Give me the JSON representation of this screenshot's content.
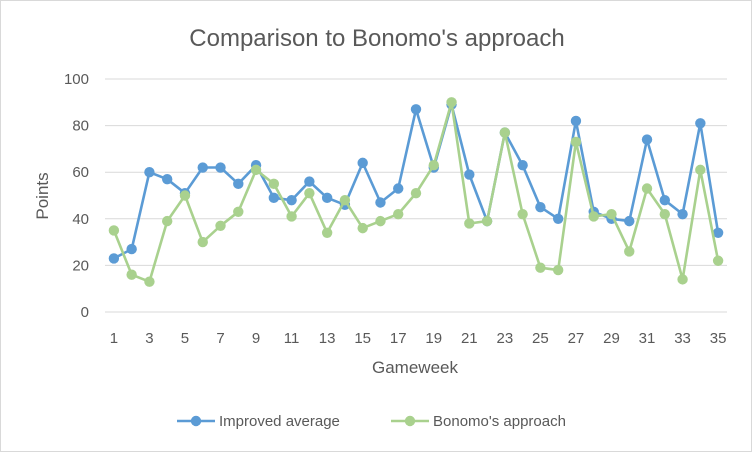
{
  "chart_data": {
    "type": "line",
    "title": "Comparison to Bonomo's approach",
    "xlabel": "Gameweek",
    "ylabel": "Points",
    "ylim": [
      0,
      100
    ],
    "yticks": [
      0,
      20,
      40,
      60,
      80,
      100
    ],
    "xticks": [
      "1",
      "3",
      "5",
      "7",
      "9",
      "11",
      "13",
      "15",
      "17",
      "19",
      "21",
      "23",
      "25",
      "27",
      "29",
      "31",
      "33",
      "35"
    ],
    "x": [
      1,
      2,
      3,
      4,
      5,
      6,
      7,
      8,
      9,
      10,
      11,
      12,
      13,
      14,
      15,
      16,
      17,
      18,
      19,
      20,
      21,
      22,
      23,
      24,
      25,
      26,
      27,
      28,
      29,
      30,
      31,
      32,
      33,
      34,
      35
    ],
    "grid": true,
    "legend_position": "bottom",
    "series": [
      {
        "name": "Improved average",
        "color": "#5b9bd5",
        "values": [
          23,
          27,
          60,
          57,
          51,
          62,
          62,
          55,
          63,
          49,
          48,
          56,
          49,
          46,
          64,
          47,
          53,
          87,
          62,
          89,
          59,
          39,
          77,
          63,
          45,
          40,
          82,
          43,
          40,
          39,
          74,
          48,
          42,
          81,
          34
        ]
      },
      {
        "name": "Bonomo's approach",
        "color": "#a9d18e",
        "values": [
          35,
          16,
          13,
          39,
          50,
          30,
          37,
          43,
          61,
          55,
          41,
          51,
          34,
          48,
          36,
          39,
          42,
          51,
          63,
          90,
          38,
          39,
          77,
          42,
          19,
          18,
          73,
          41,
          42,
          26,
          53,
          42,
          14,
          61,
          22
        ]
      }
    ]
  }
}
